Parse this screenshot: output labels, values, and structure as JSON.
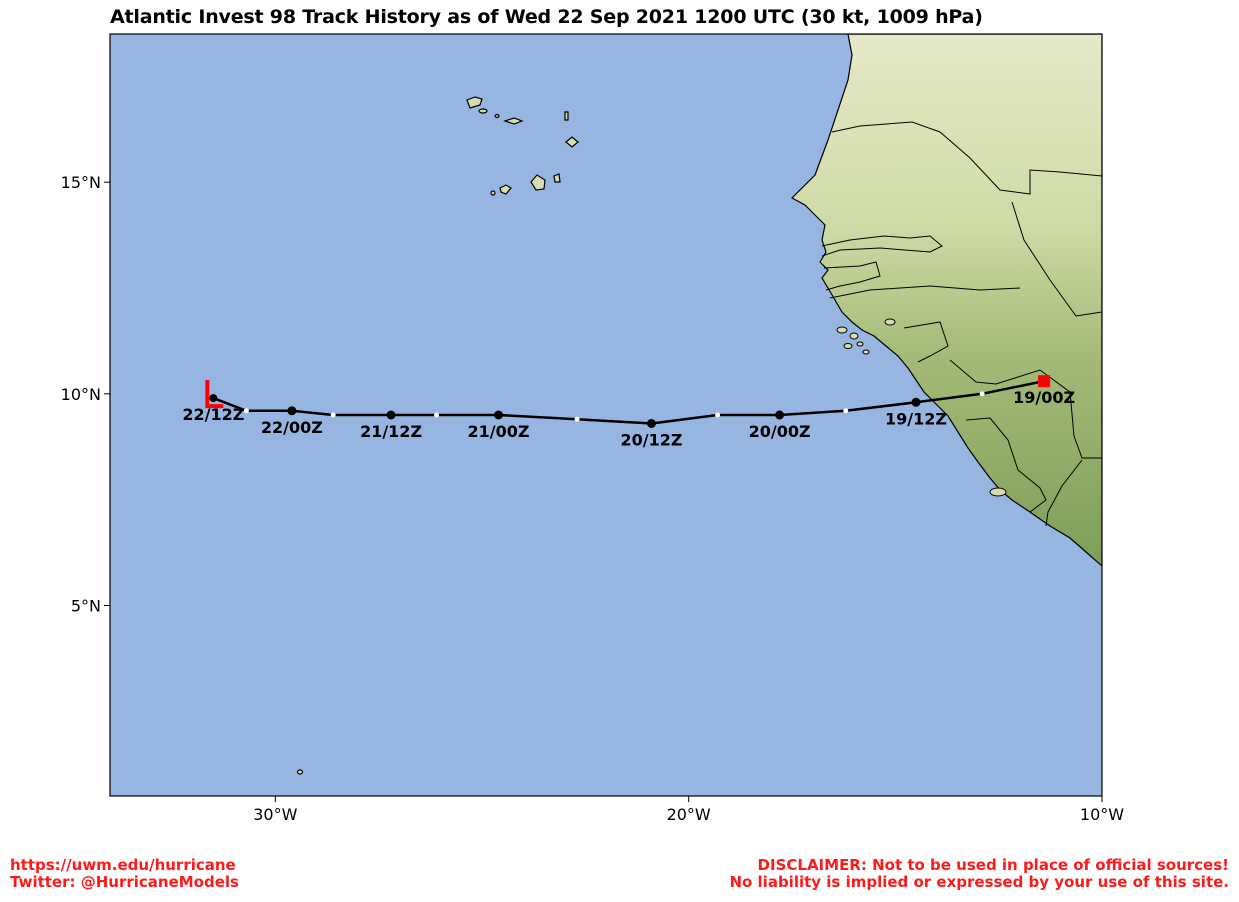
{
  "title": "Atlantic Invest 98 Track History as of Wed 22 Sep 2021 1200 UTC (30 kt, 1009 hPa)",
  "map": {
    "extent": {
      "lon_min": -34,
      "lon_max": -10,
      "lat_min": 0.5,
      "lat_max": 18.5
    },
    "ocean_color": "#97b5e1",
    "land_color": "#d9dcae",
    "track_color": "#000000",
    "marker_color": "#ff0000"
  },
  "axes": {
    "lat_ticks": [
      {
        "value": 15,
        "label": "15°N"
      },
      {
        "value": 10,
        "label": "10°N"
      },
      {
        "value": 5,
        "label": "5°N"
      }
    ],
    "lon_ticks": [
      {
        "value": -30,
        "label": "30°W"
      },
      {
        "value": -20,
        "label": "20°W"
      },
      {
        "value": -10,
        "label": "10°W"
      }
    ]
  },
  "track": {
    "points": [
      {
        "lon": -11.4,
        "lat": 10.3,
        "label": "19/00Z",
        "kind": "start"
      },
      {
        "lon": -12.9,
        "lat": 10.0,
        "label": "",
        "kind": "intermediate"
      },
      {
        "lon": -14.5,
        "lat": 9.8,
        "label": "19/12Z",
        "kind": "main"
      },
      {
        "lon": -16.2,
        "lat": 9.6,
        "label": "",
        "kind": "intermediate"
      },
      {
        "lon": -17.8,
        "lat": 9.5,
        "label": "20/00Z",
        "kind": "main"
      },
      {
        "lon": -19.3,
        "lat": 9.5,
        "label": "",
        "kind": "intermediate"
      },
      {
        "lon": -20.9,
        "lat": 9.3,
        "label": "20/12Z",
        "kind": "main"
      },
      {
        "lon": -22.7,
        "lat": 9.4,
        "label": "",
        "kind": "intermediate"
      },
      {
        "lon": -24.6,
        "lat": 9.5,
        "label": "21/00Z",
        "kind": "main"
      },
      {
        "lon": -26.1,
        "lat": 9.5,
        "label": "",
        "kind": "intermediate"
      },
      {
        "lon": -27.2,
        "lat": 9.5,
        "label": "21/12Z",
        "kind": "main"
      },
      {
        "lon": -28.6,
        "lat": 9.5,
        "label": "",
        "kind": "intermediate"
      },
      {
        "lon": -29.6,
        "lat": 9.6,
        "label": "22/00Z",
        "kind": "main"
      },
      {
        "lon": -30.7,
        "lat": 9.6,
        "label": "",
        "kind": "intermediate"
      },
      {
        "lon": -31.5,
        "lat": 9.9,
        "label": "22/12Z",
        "kind": "current"
      }
    ]
  },
  "footer": {
    "left_line1": "https://uwm.edu/hurricane",
    "left_line2": "Twitter: @HurricaneModels",
    "right_line1": "DISCLAIMER: Not to be used in place of official sources!",
    "right_line2": "No liability is implied or expressed by your use of this site."
  }
}
